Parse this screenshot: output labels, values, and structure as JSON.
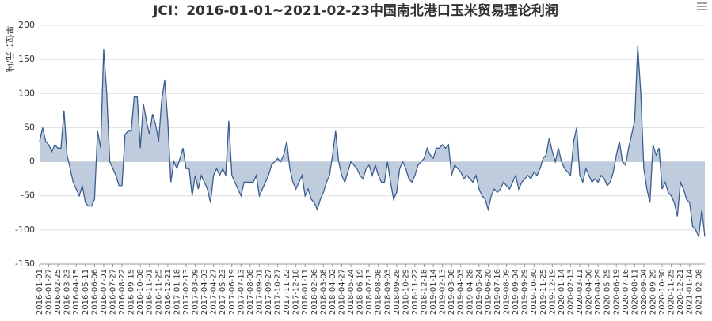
{
  "chart_data": {
    "type": "line",
    "area": true,
    "title": "JCI：2016-01-01~2021-02-23中国南北港口玉米贸易理论利润",
    "y_label": "单位：元/吨",
    "categories": [
      "2016-01-01",
      null,
      null,
      "2016-01-27",
      null,
      null,
      "2016-02-25",
      null,
      null,
      "2016-03-23",
      null,
      null,
      "2016-04-15",
      null,
      null,
      "2016-05-11",
      null,
      null,
      "2016-06-06",
      null,
      null,
      "2016-07-01",
      null,
      null,
      "2016-07-27",
      null,
      null,
      "2016-08-22",
      null,
      null,
      "2016-09-15",
      null,
      null,
      "2016-10-08",
      null,
      null,
      "2016-11-01",
      null,
      null,
      "2016-11-25",
      null,
      null,
      "2016-12-21",
      null,
      null,
      "2017-01-18",
      null,
      null,
      "2017-02-13",
      null,
      null,
      "2017-03-09",
      null,
      null,
      "2017-04-03",
      null,
      null,
      "2017-04-27",
      null,
      null,
      "2017-05-23",
      null,
      null,
      "2017-06-19",
      null,
      null,
      "2017-07-13",
      null,
      null,
      "2017-08-08",
      null,
      null,
      "2017-09-01",
      null,
      null,
      "2017-09-27",
      null,
      null,
      "2017-10-27",
      null,
      null,
      "2017-11-22",
      null,
      null,
      "2017-12-18",
      null,
      null,
      "2018-01-11",
      null,
      null,
      "2018-02-06",
      null,
      null,
      "2018-03-08",
      null,
      null,
      "2018-04-02",
      null,
      null,
      "2018-04-27",
      null,
      null,
      "2018-05-24",
      null,
      null,
      "2018-06-19",
      null,
      null,
      "2018-07-13",
      null,
      null,
      "2018-08-08",
      null,
      null,
      "2018-09-03",
      null,
      null,
      "2018-09-28",
      null,
      null,
      "2018-10-29",
      null,
      null,
      "2018-11-22",
      null,
      null,
      "2018-12-18",
      null,
      null,
      "2019-01-14",
      null,
      null,
      "2019-02-13",
      null,
      null,
      "2019-03-08",
      null,
      null,
      "2019-04-03",
      null,
      null,
      "2019-04-28",
      null,
      null,
      "2019-05-24",
      null,
      null,
      "2019-06-20",
      null,
      null,
      "2019-07-16",
      null,
      null,
      "2019-08-09",
      null,
      null,
      "2019-09-04",
      null,
      null,
      "2019-09-29",
      null,
      null,
      "2019-10-30",
      null,
      null,
      "2019-11-25",
      null,
      null,
      "2019-12-19",
      null,
      null,
      "2020-01-14",
      null,
      null,
      "2020-02-13",
      null,
      null,
      "2020-03-11",
      null,
      null,
      "2020-04-06",
      null,
      null,
      "2020-04-29",
      null,
      null,
      "2020-05-25",
      null,
      null,
      "2020-06-19",
      null,
      null,
      "2020-07-16",
      null,
      null,
      "2020-08-11",
      null,
      null,
      "2020-09-04",
      null,
      null,
      "2020-09-29",
      null,
      null,
      "2020-10-30",
      null,
      null,
      "2020-11-25",
      null,
      null,
      "2020-12-21",
      null,
      null,
      "2021-01-14",
      null,
      null,
      "2021-02-08",
      null,
      null
    ],
    "series": [
      {
        "color": "#3a5d8f",
        "area_color": "#b8c6d9",
        "values": [
          30,
          50,
          30,
          25,
          15,
          25,
          20,
          20,
          75,
          10,
          -10,
          -30,
          -40,
          -50,
          -35,
          -60,
          -65,
          -65,
          -55,
          45,
          20,
          165,
          100,
          0,
          -10,
          -20,
          -35,
          -35,
          40,
          45,
          45,
          95,
          95,
          20,
          85,
          60,
          40,
          70,
          55,
          30,
          90,
          120,
          60,
          -30,
          0,
          -10,
          5,
          20,
          -10,
          -10,
          -50,
          -20,
          -40,
          -20,
          -30,
          -40,
          -60,
          -20,
          -10,
          -20,
          -10,
          -20,
          60,
          -20,
          -30,
          -40,
          -50,
          -30,
          -30,
          -30,
          -30,
          -20,
          -50,
          -40,
          -30,
          -20,
          -5,
          0,
          5,
          0,
          10,
          30,
          -10,
          -30,
          -40,
          -30,
          -20,
          -50,
          -40,
          -55,
          -60,
          -70,
          -55,
          -45,
          -30,
          -20,
          10,
          45,
          0,
          -20,
          -30,
          -15,
          0,
          -5,
          -10,
          -20,
          -25,
          -10,
          -5,
          -20,
          -5,
          -20,
          -30,
          -30,
          0,
          -30,
          -55,
          -45,
          -10,
          0,
          -10,
          -25,
          -30,
          -20,
          -5,
          0,
          5,
          20,
          10,
          5,
          20,
          20,
          25,
          20,
          25,
          -20,
          -5,
          -10,
          -15,
          -25,
          -20,
          -25,
          -30,
          -20,
          -40,
          -50,
          -55,
          -70,
          -50,
          -40,
          -45,
          -40,
          -30,
          -35,
          -40,
          -30,
          -20,
          -40,
          -30,
          -25,
          -20,
          -25,
          -15,
          -20,
          -10,
          5,
          10,
          35,
          15,
          0,
          20,
          0,
          -10,
          -15,
          -20,
          30,
          50,
          -20,
          -30,
          -10,
          -20,
          -30,
          -25,
          -30,
          -20,
          -25,
          -35,
          -30,
          -15,
          10,
          30,
          0,
          -5,
          20,
          40,
          60,
          170,
          100,
          -10,
          -40,
          -60,
          25,
          10,
          20,
          -40,
          -30,
          -45,
          -50,
          -60,
          -80,
          -30,
          -40,
          -55,
          -60,
          -95,
          -100,
          -110,
          -70,
          -110
        ]
      }
    ],
    "ylim": [
      -150,
      200
    ],
    "yticks": [
      -150,
      -100,
      -50,
      0,
      50,
      100,
      150,
      200
    ],
    "grid": true
  }
}
